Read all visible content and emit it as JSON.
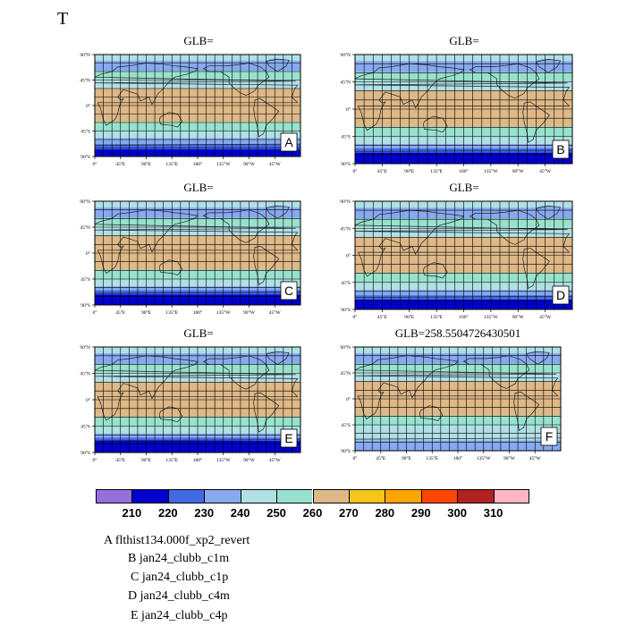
{
  "page_title": "T",
  "panel_titles": [
    "GLB=",
    "GLB=",
    "GLB=",
    "GLB=",
    "GLB=",
    "GLB=258.5504726430501"
  ],
  "panel_tags": [
    "A",
    "B",
    "C",
    "D",
    "E",
    "F"
  ],
  "lat_ticks": [
    "90°N",
    "45°N",
    "0°",
    "45°S",
    "90°S"
  ],
  "lon_ticks": [
    "0°",
    "45°E",
    "90°E",
    "135°E",
    "180°",
    "135°W",
    "90°W",
    "45°W"
  ],
  "colorbar": {
    "colors": [
      "#9370db",
      "#0000cd",
      "#4169e1",
      "#87a9ef",
      "#b0e0e6",
      "#98e2cd",
      "#deb887",
      "#f5c518",
      "#ffa500",
      "#ff4500",
      "#b22222",
      "#ffb6c1"
    ],
    "labels": [
      "210",
      "220",
      "230",
      "240",
      "250",
      "260",
      "270",
      "280",
      "290",
      "300",
      "310"
    ]
  },
  "legend": [
    "A  flthist134.000f_xp2_revert",
    "B  jan24_clubb_c1m",
    "C  jan24_clubb_c1p",
    "D  jan24_clubb_c4m",
    "E  jan24_clubb_c4p"
  ]
}
